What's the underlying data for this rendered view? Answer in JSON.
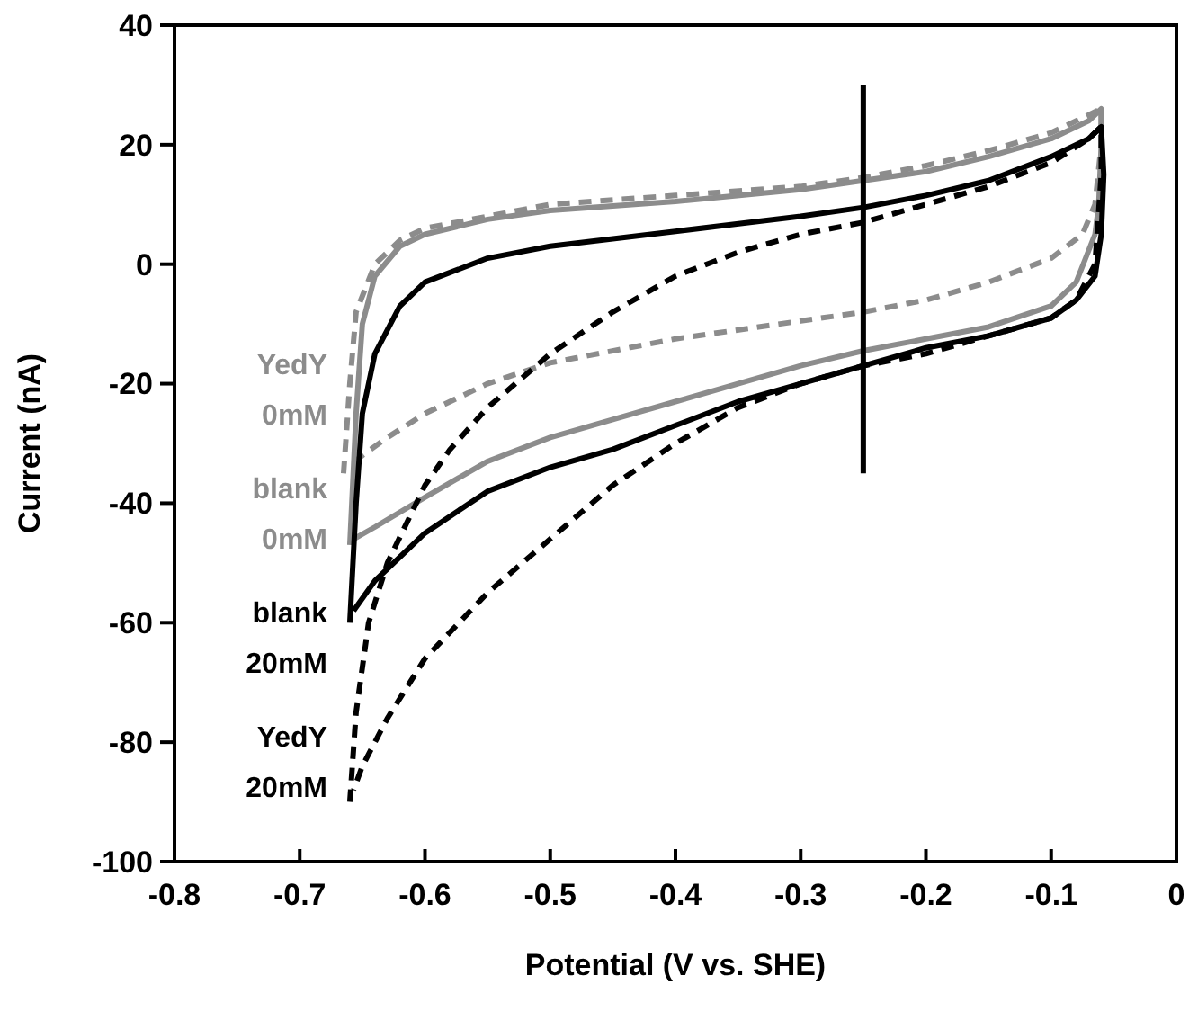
{
  "chart_data": {
    "type": "line",
    "xlabel": "Potential (V vs. SHE)",
    "ylabel": "Current (nA)",
    "xlim": [
      -0.8,
      0
    ],
    "xticks": [
      -0.8,
      -0.7,
      -0.6,
      -0.5,
      -0.4,
      -0.3,
      -0.2,
      -0.1,
      0
    ],
    "ylim": [
      -100,
      40
    ],
    "yticks": [
      -100,
      -80,
      -60,
      -40,
      -20,
      0,
      20,
      40
    ],
    "grid": false,
    "legend": "left",
    "marker": "none",
    "series": [
      {
        "name": "YedY 0mM",
        "color": "#8c8c8c",
        "line_style": "dashed",
        "x": [
          -0.665,
          -0.66,
          -0.655,
          -0.64,
          -0.62,
          -0.6,
          -0.55,
          -0.5,
          -0.4,
          -0.3,
          -0.25,
          -0.2,
          -0.15,
          -0.1,
          -0.07,
          -0.06,
          -0.06,
          -0.065,
          -0.075,
          -0.1,
          -0.15,
          -0.2,
          -0.25,
          -0.3,
          -0.4,
          -0.5,
          -0.55,
          -0.6,
          -0.63,
          -0.65,
          -0.662
        ],
        "values": [
          -35,
          -20,
          -8,
          0,
          4,
          6,
          8,
          10,
          11.5,
          13,
          14.5,
          16.5,
          19,
          22,
          25,
          26,
          20,
          10,
          5,
          1,
          -3,
          -6,
          -8,
          -9.5,
          -12.5,
          -16.5,
          -20,
          -25,
          -29,
          -32,
          -34
        ]
      },
      {
        "name": "blank 0mM",
        "color": "#8c8c8c",
        "line_style": "solid",
        "x": [
          -0.66,
          -0.655,
          -0.65,
          -0.64,
          -0.62,
          -0.6,
          -0.55,
          -0.5,
          -0.4,
          -0.3,
          -0.25,
          -0.2,
          -0.15,
          -0.1,
          -0.07,
          -0.06,
          -0.06,
          -0.062,
          -0.065,
          -0.08,
          -0.1,
          -0.15,
          -0.2,
          -0.25,
          -0.3,
          -0.4,
          -0.45,
          -0.5,
          -0.55,
          -0.6,
          -0.64,
          -0.657
        ],
        "values": [
          -47,
          -25,
          -10,
          -2,
          3,
          5,
          7.5,
          9,
          10.5,
          12.5,
          14,
          15.5,
          18,
          21,
          24,
          26,
          20,
          10,
          5,
          -3,
          -7,
          -10.5,
          -12.5,
          -14.5,
          -17,
          -23,
          -26,
          -29,
          -33,
          -39,
          -44,
          -46
        ]
      },
      {
        "name": "blank 20mM",
        "color": "#000000",
        "line_style": "solid",
        "x": [
          -0.66,
          -0.655,
          -0.65,
          -0.64,
          -0.62,
          -0.6,
          -0.55,
          -0.5,
          -0.4,
          -0.3,
          -0.25,
          -0.2,
          -0.15,
          -0.1,
          -0.07,
          -0.06,
          -0.058,
          -0.06,
          -0.065,
          -0.08,
          -0.1,
          -0.15,
          -0.2,
          -0.25,
          -0.3,
          -0.35,
          -0.4,
          -0.45,
          -0.5,
          -0.55,
          -0.6,
          -0.62,
          -0.64,
          -0.657
        ],
        "values": [
          -60,
          -40,
          -25,
          -15,
          -7,
          -3,
          1,
          3,
          5.5,
          8,
          9.5,
          11.5,
          14,
          18,
          21,
          23,
          15,
          5,
          -2,
          -6,
          -9,
          -12,
          -14,
          -17,
          -20,
          -23,
          -27,
          -31,
          -34,
          -38,
          -45,
          -49,
          -53,
          -58
        ]
      },
      {
        "name": "YedY 20mM",
        "color": "#000000",
        "line_style": "dashed",
        "x": [
          -0.66,
          -0.655,
          -0.645,
          -0.63,
          -0.6,
          -0.58,
          -0.55,
          -0.5,
          -0.45,
          -0.4,
          -0.35,
          -0.3,
          -0.25,
          -0.2,
          -0.15,
          -0.1,
          -0.07,
          -0.06,
          -0.06,
          -0.065,
          -0.08,
          -0.1,
          -0.15,
          -0.2,
          -0.25,
          -0.3,
          -0.35,
          -0.4,
          -0.45,
          -0.5,
          -0.55,
          -0.6,
          -0.63,
          -0.65,
          -0.657
        ],
        "values": [
          -90,
          -75,
          -60,
          -50,
          -37,
          -31,
          -24,
          -15,
          -8,
          -2,
          2,
          5,
          7,
          10,
          13,
          17,
          21,
          23,
          15,
          0,
          -6,
          -9,
          -12,
          -15,
          -17,
          -20,
          -24,
          -30,
          -37,
          -46,
          -55,
          -66,
          -76,
          -84,
          -88
        ]
      },
      {
        "color": "#000000",
        "line_style": "solid",
        "x": [
          -0.25,
          -0.25
        ],
        "values": [
          30,
          -35
        ]
      }
    ]
  }
}
